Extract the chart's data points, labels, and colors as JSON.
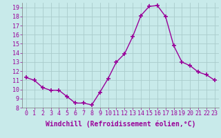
{
  "x": [
    0,
    1,
    2,
    3,
    4,
    5,
    6,
    7,
    8,
    9,
    10,
    11,
    12,
    13,
    14,
    15,
    16,
    17,
    18,
    19,
    20,
    21,
    22,
    23
  ],
  "y": [
    11.3,
    11.0,
    10.2,
    9.9,
    9.9,
    9.2,
    8.5,
    8.5,
    8.3,
    9.7,
    11.2,
    13.0,
    13.9,
    15.8,
    18.1,
    19.1,
    19.2,
    18.0,
    14.8,
    13.0,
    12.6,
    11.9,
    11.6,
    11.0
  ],
  "line_color": "#990099",
  "marker": "+",
  "marker_size": 4,
  "bg_color": "#c8eaea",
  "grid_color": "#aacccc",
  "xlabel": "Windchill (Refroidissement éolien,°C)",
  "xlim": [
    -0.5,
    23.5
  ],
  "ylim": [
    8,
    19.5
  ],
  "yticks": [
    8,
    9,
    10,
    11,
    12,
    13,
    14,
    15,
    16,
    17,
    18,
    19
  ],
  "xticks": [
    0,
    1,
    2,
    3,
    4,
    5,
    6,
    7,
    8,
    9,
    10,
    11,
    12,
    13,
    14,
    15,
    16,
    17,
    18,
    19,
    20,
    21,
    22,
    23
  ],
  "tick_fontsize": 6,
  "xlabel_fontsize": 7,
  "line_width": 1.0,
  "marker_color": "#990099"
}
